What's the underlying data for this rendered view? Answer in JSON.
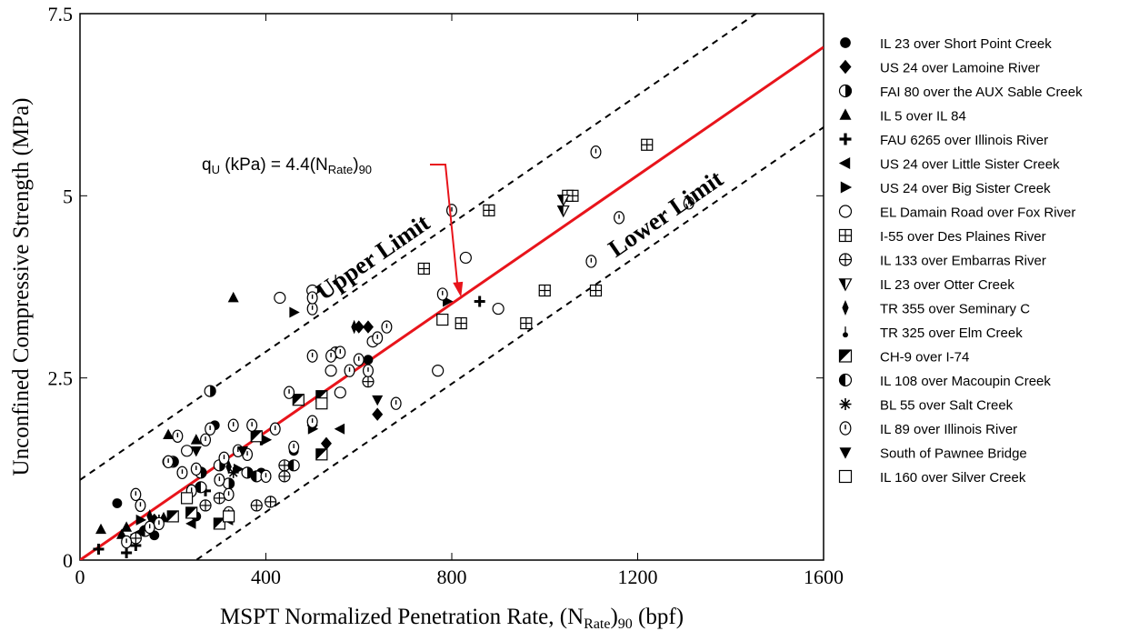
{
  "chart_data": {
    "type": "scatter",
    "title": "",
    "xlabel": "MSPT Normalized Penetration Rate, (N",
    "xlabel_sub": "Rate",
    "xlabel_tail": ")",
    "xlabel_sub2": "90",
    "xlabel_end": " (bpf)",
    "ylabel": "Unconfined Compressive Strength (MPa)",
    "xlim": [
      0,
      1600
    ],
    "ylim": [
      0,
      7.5
    ],
    "xticks": [
      "0",
      "400",
      "800",
      "1200",
      "1600"
    ],
    "xtick_values": [
      0,
      400,
      800,
      1200,
      1600
    ],
    "yticks": [
      "0",
      "2.5",
      "5",
      "7.5"
    ],
    "ytick_values": [
      0,
      2.5,
      5,
      7.5
    ],
    "grid": false,
    "legend_position": "right",
    "fit_line": {
      "slope": 0.0044,
      "intercept": 0,
      "color": "#e8141b"
    },
    "upper_limit": {
      "label": "Upper Limit",
      "slope": 0.0044,
      "intercept": 1.1
    },
    "lower_limit": {
      "label": "Lower Limit",
      "slope": 0.0044,
      "intercept": -1.1
    },
    "equation": {
      "q": "q",
      "q_sub": "U",
      "mid": " (kPa) = 4.4(N",
      "n_sub": "Rate",
      "close": ")",
      "sub90": "90"
    },
    "series": [
      {
        "name": "IL 23 over Short Point Creek",
        "marker": "filled-circle",
        "points": [
          [
            80,
            0.78
          ],
          [
            160,
            0.34
          ],
          [
            250,
            0.6
          ],
          [
            290,
            1.85
          ],
          [
            390,
            1.2
          ],
          [
            460,
            1.5
          ],
          [
            620,
            2.75
          ]
        ]
      },
      {
        "name": "US 24 over Lamoine River",
        "marker": "filled-diamond",
        "points": [
          [
            160,
            0.55
          ],
          [
            500,
            1.85
          ],
          [
            530,
            1.6
          ],
          [
            600,
            3.2
          ],
          [
            620,
            3.2
          ],
          [
            640,
            2.0
          ]
        ]
      },
      {
        "name": "FAI 80 over the AUX Sable Creek",
        "marker": "half-circle-right",
        "points": [
          [
            200,
            1.35
          ],
          [
            260,
            1.2
          ],
          [
            280,
            2.32
          ],
          [
            300,
            1.3
          ],
          [
            320,
            1.05
          ],
          [
            360,
            1.2
          ]
        ]
      },
      {
        "name": "IL 5 over IL 84",
        "marker": "filled-triangle-up",
        "points": [
          [
            45,
            0.42
          ],
          [
            90,
            0.35
          ],
          [
            100,
            0.45
          ],
          [
            180,
            0.58
          ],
          [
            190,
            1.72
          ],
          [
            250,
            1.65
          ],
          [
            330,
            3.6
          ]
        ]
      },
      {
        "name": "FAU 6265 over Illinois River",
        "marker": "plus",
        "points": [
          [
            40,
            0.15
          ],
          [
            100,
            0.1
          ],
          [
            120,
            0.2
          ],
          [
            270,
            0.95
          ],
          [
            390,
            1.65
          ],
          [
            860,
            3.55
          ]
        ]
      },
      {
        "name": "US 24 over Little Sister Creek",
        "marker": "filled-triangle-left",
        "points": [
          [
            120,
            0.35
          ],
          [
            240,
            0.5
          ],
          [
            320,
            0.55
          ],
          [
            560,
            1.8
          ]
        ]
      },
      {
        "name": "US 24 over Big Sister Creek",
        "marker": "filled-triangle-right",
        "points": [
          [
            130,
            0.55
          ],
          [
            340,
            1.25
          ],
          [
            400,
            1.65
          ],
          [
            460,
            3.4
          ],
          [
            500,
            1.8
          ],
          [
            510,
            3.7
          ],
          [
            790,
            3.55
          ]
        ]
      },
      {
        "name": "EL Damain Road over Fox River",
        "marker": "open-circle",
        "points": [
          [
            190,
            1.35
          ],
          [
            230,
            1.5
          ],
          [
            430,
            3.6
          ],
          [
            500,
            3.7
          ],
          [
            540,
            2.6
          ],
          [
            560,
            2.3
          ],
          [
            630,
            3.0
          ],
          [
            770,
            2.6
          ],
          [
            830,
            4.15
          ],
          [
            900,
            3.45
          ]
        ]
      },
      {
        "name": "I-55 over Des Plaines River",
        "marker": "boxed-plus",
        "points": [
          [
            740,
            4.0
          ],
          [
            820,
            3.25
          ],
          [
            880,
            4.8
          ],
          [
            960,
            3.25
          ],
          [
            1000,
            3.7
          ],
          [
            1050,
            5.0
          ],
          [
            1060,
            5.0
          ],
          [
            1110,
            3.7
          ],
          [
            1220,
            5.7
          ]
        ]
      },
      {
        "name": "IL 133 over Embarras River",
        "marker": "circled-plus",
        "points": [
          [
            120,
            0.3
          ],
          [
            270,
            0.75
          ],
          [
            300,
            0.85
          ],
          [
            380,
            0.75
          ],
          [
            410,
            0.8
          ],
          [
            440,
            1.3
          ],
          [
            440,
            1.15
          ],
          [
            550,
            2.85
          ],
          [
            620,
            2.45
          ]
        ]
      },
      {
        "name": "IL 23 over Otter Creek",
        "marker": "half-triangle-down",
        "points": [
          [
            1040,
            4.8
          ],
          [
            1040,
            4.95
          ]
        ]
      },
      {
        "name": "TR 355 over Seminary C",
        "marker": "thin-diamond",
        "points": [
          [
            150,
            0.6
          ],
          [
            320,
            1.28
          ],
          [
            590,
            3.2
          ]
        ]
      },
      {
        "name": "TR 325 over Elm Creek",
        "marker": "pin",
        "points": [
          [
            550,
            3.85
          ]
        ]
      },
      {
        "name": "CH-9 over I-74",
        "marker": "half-square",
        "points": [
          [
            200,
            0.6
          ],
          [
            240,
            0.65
          ],
          [
            300,
            0.5
          ],
          [
            380,
            1.7
          ],
          [
            470,
            2.2
          ],
          [
            520,
            1.45
          ],
          [
            520,
            2.25
          ]
        ]
      },
      {
        "name": "IL 108 over Macoupin Creek",
        "marker": "half-circle-left",
        "points": [
          [
            140,
            0.4
          ],
          [
            260,
            1.0
          ],
          [
            380,
            1.15
          ],
          [
            460,
            1.3
          ]
        ]
      },
      {
        "name": "BL 55 over Salt Creek",
        "marker": "asterisk",
        "points": [
          [
            170,
            0.55
          ],
          [
            330,
            1.2
          ]
        ]
      },
      {
        "name": "IL 89 over Illinois River",
        "marker": "circled-bar",
        "points": [
          [
            100,
            0.25
          ],
          [
            120,
            0.9
          ],
          [
            130,
            0.75
          ],
          [
            150,
            0.45
          ],
          [
            170,
            0.5
          ],
          [
            190,
            1.35
          ],
          [
            210,
            1.7
          ],
          [
            220,
            1.2
          ],
          [
            240,
            0.95
          ],
          [
            250,
            1.25
          ],
          [
            270,
            1.65
          ],
          [
            280,
            1.8
          ],
          [
            300,
            1.1
          ],
          [
            310,
            1.4
          ],
          [
            320,
            0.9
          ],
          [
            320,
            0.65
          ],
          [
            330,
            1.85
          ],
          [
            340,
            1.5
          ],
          [
            360,
            1.45
          ],
          [
            370,
            1.85
          ],
          [
            400,
            1.15
          ],
          [
            420,
            1.8
          ],
          [
            450,
            2.3
          ],
          [
            460,
            1.55
          ],
          [
            500,
            1.9
          ],
          [
            500,
            2.8
          ],
          [
            500,
            3.45
          ],
          [
            500,
            3.6
          ],
          [
            540,
            2.8
          ],
          [
            560,
            2.85
          ],
          [
            580,
            2.6
          ],
          [
            600,
            2.75
          ],
          [
            620,
            2.6
          ],
          [
            640,
            3.05
          ],
          [
            660,
            3.2
          ],
          [
            680,
            2.15
          ],
          [
            780,
            3.65
          ],
          [
            800,
            4.8
          ],
          [
            1100,
            4.1
          ],
          [
            1110,
            5.6
          ],
          [
            1160,
            4.7
          ],
          [
            1310,
            4.9
          ]
        ]
      },
      {
        "name": "South of Pawnee Bridge",
        "marker": "filled-triangle-down",
        "points": [
          [
            250,
            1.5
          ],
          [
            350,
            1.5
          ],
          [
            640,
            2.2
          ]
        ]
      },
      {
        "name": "IL 160 over Silver Creek",
        "marker": "open-square",
        "points": [
          [
            230,
            0.85
          ],
          [
            320,
            0.6
          ],
          [
            520,
            2.15
          ],
          [
            780,
            3.3
          ]
        ]
      }
    ]
  }
}
